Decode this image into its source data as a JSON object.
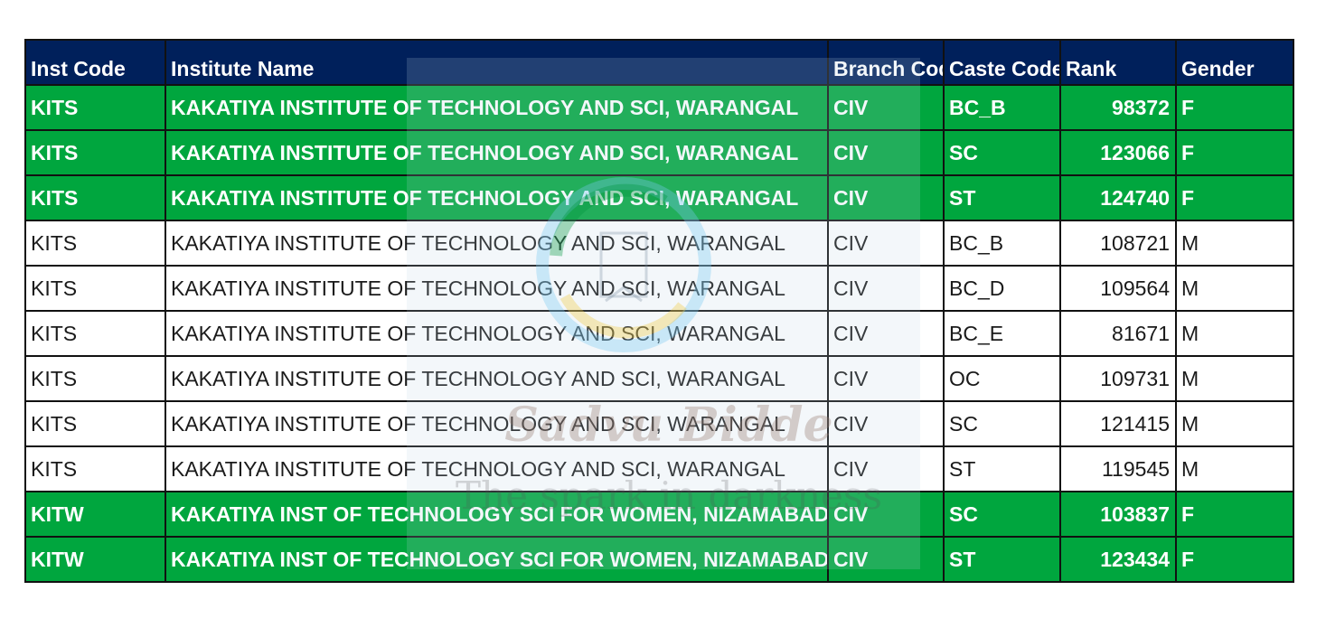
{
  "headers": {
    "inst_code": "Inst Code",
    "institute_name": "Institute Name",
    "branch_code": "Branch Code",
    "caste_code": "Caste Code",
    "rank": "Rank",
    "gender": "Gender"
  },
  "rows": [
    {
      "inst_code": "KITS",
      "institute_name": "KAKATIYA INSTITUTE OF TECHNOLOGY AND SCI, WARANGAL",
      "branch_code": "CIV",
      "caste_code": "BC_B",
      "rank": "98372",
      "gender": "F"
    },
    {
      "inst_code": "KITS",
      "institute_name": "KAKATIYA INSTITUTE OF TECHNOLOGY AND SCI, WARANGAL",
      "branch_code": "CIV",
      "caste_code": "SC",
      "rank": "123066",
      "gender": "F"
    },
    {
      "inst_code": "KITS",
      "institute_name": "KAKATIYA INSTITUTE OF TECHNOLOGY AND SCI, WARANGAL",
      "branch_code": "CIV",
      "caste_code": "ST",
      "rank": "124740",
      "gender": "F"
    },
    {
      "inst_code": "KITS",
      "institute_name": "KAKATIYA INSTITUTE OF TECHNOLOGY AND SCI, WARANGAL",
      "branch_code": "CIV",
      "caste_code": "BC_B",
      "rank": "108721",
      "gender": "M"
    },
    {
      "inst_code": "KITS",
      "institute_name": "KAKATIYA INSTITUTE OF TECHNOLOGY AND SCI, WARANGAL",
      "branch_code": "CIV",
      "caste_code": "BC_D",
      "rank": "109564",
      "gender": "M"
    },
    {
      "inst_code": "KITS",
      "institute_name": "KAKATIYA INSTITUTE OF TECHNOLOGY AND SCI, WARANGAL",
      "branch_code": "CIV",
      "caste_code": "BC_E",
      "rank": "81671",
      "gender": "M"
    },
    {
      "inst_code": "KITS",
      "institute_name": "KAKATIYA INSTITUTE OF TECHNOLOGY AND SCI, WARANGAL",
      "branch_code": "CIV",
      "caste_code": "OC",
      "rank": "109731",
      "gender": "M"
    },
    {
      "inst_code": "KITS",
      "institute_name": "KAKATIYA INSTITUTE OF TECHNOLOGY AND SCI, WARANGAL",
      "branch_code": "CIV",
      "caste_code": "SC",
      "rank": "121415",
      "gender": "M"
    },
    {
      "inst_code": "KITS",
      "institute_name": "KAKATIYA INSTITUTE OF TECHNOLOGY AND SCI, WARANGAL",
      "branch_code": "CIV",
      "caste_code": "ST",
      "rank": "119545",
      "gender": "M"
    },
    {
      "inst_code": "KITW",
      "institute_name": "KAKATIYA INST OF TECHNOLOGY SCI FOR WOMEN, NIZAMABAD",
      "branch_code": "CIV",
      "caste_code": "SC",
      "rank": "103837",
      "gender": "F"
    },
    {
      "inst_code": "KITW",
      "institute_name": "KAKATIYA INST OF TECHNOLOGY SCI FOR WOMEN, NIZAMABAD",
      "branch_code": "CIV",
      "caste_code": "ST",
      "rank": "123434",
      "gender": "F"
    }
  ],
  "colors": {
    "header_bg": "#00205b",
    "female_row_bg": "#00a63e",
    "male_row_bg": "#ffffff"
  },
  "watermark": {
    "title": "Sadvu Bidde",
    "tagline": "The spark in darkness"
  }
}
